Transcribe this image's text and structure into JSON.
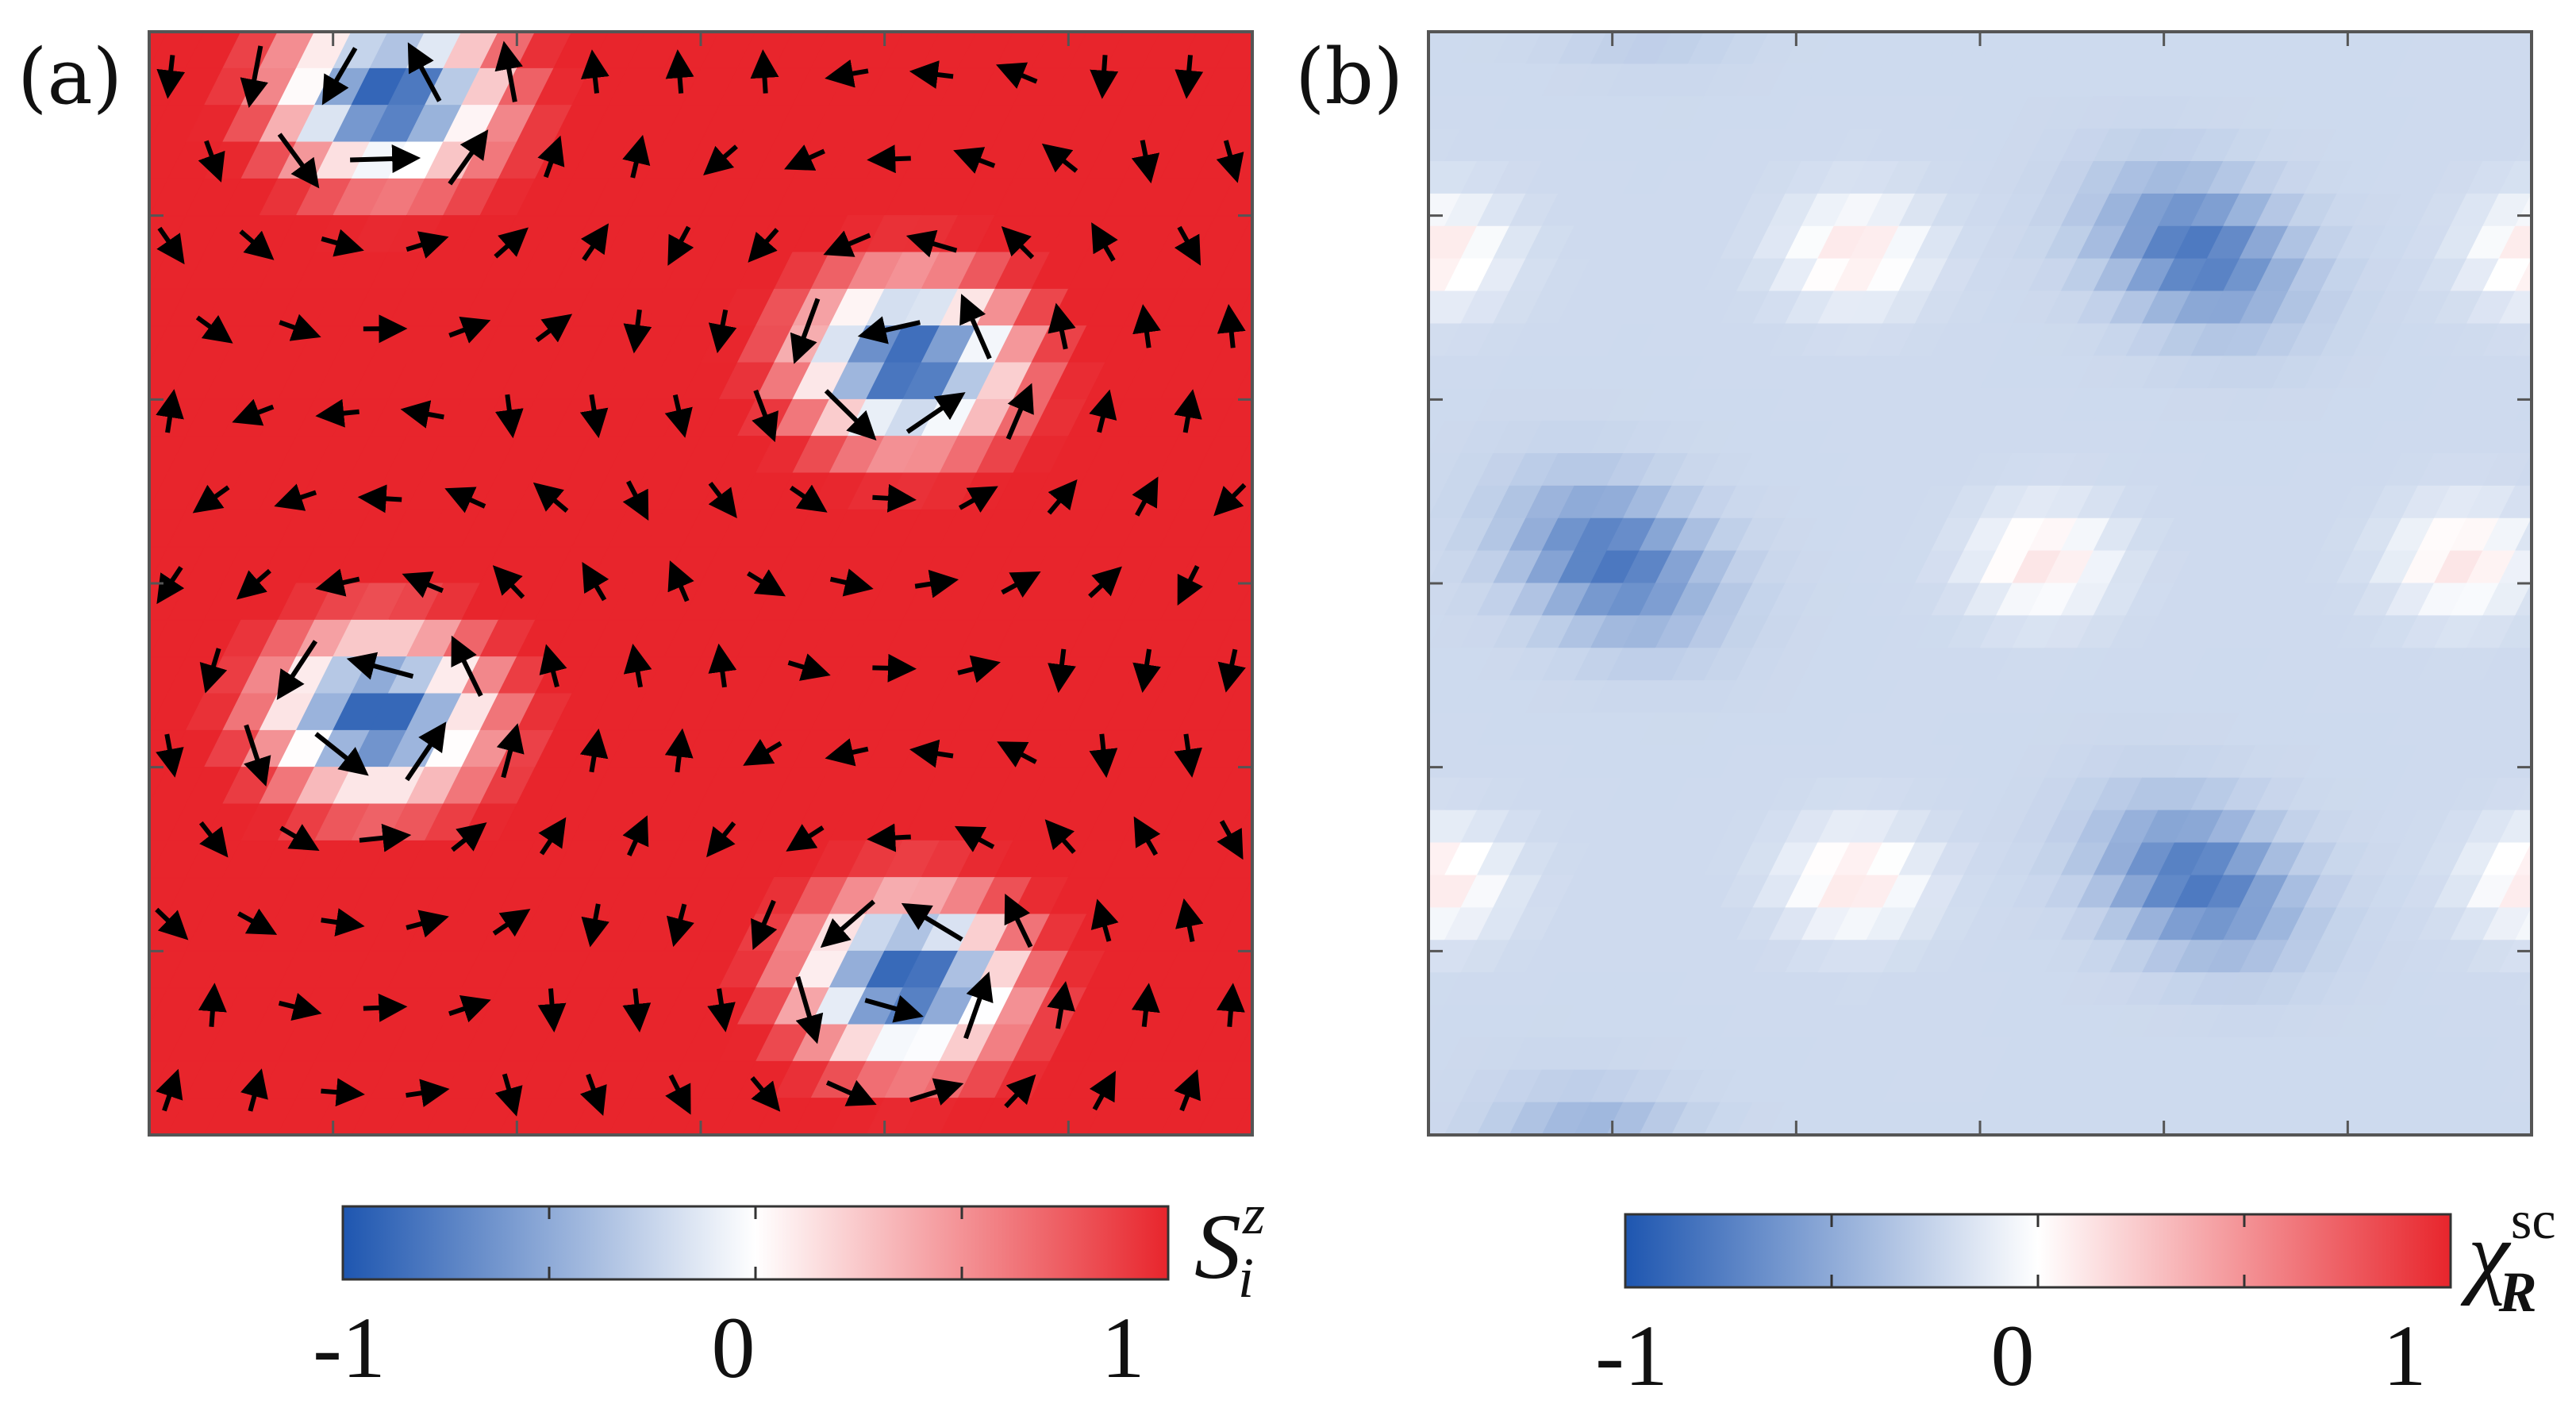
{
  "chart_data": [
    {
      "panel": "(a)",
      "type": "heatmap",
      "title": "",
      "xlabel": "",
      "ylabel": "",
      "field": "spin z-component with in-plane spin vectors (arrows)",
      "skyrmion_core_value": -1,
      "background_value": 1,
      "skyrmion_count_visible": 4,
      "grid": "off",
      "colorbar": {
        "label_symbol": "S",
        "label_sub": "i",
        "label_sup": "z",
        "range": [
          -1,
          1
        ],
        "tick_labels": [
          "-1",
          "0",
          "1"
        ],
        "colors": {
          "low": "#1e56b0",
          "mid": "#ffffff",
          "high": "#e8252c"
        }
      }
    },
    {
      "panel": "(b)",
      "type": "heatmap",
      "title": "",
      "xlabel": "",
      "ylabel": "",
      "field": "scalar spin chirality",
      "min_value_estimate": -0.8,
      "max_value_estimate": 0.12,
      "grid": "off",
      "colorbar": {
        "label_symbol": "χ",
        "label_sub": "R",
        "label_sup": "sc",
        "range": [
          -1,
          1
        ],
        "tick_labels": [
          "-1",
          "0",
          "1"
        ],
        "colors": {
          "low": "#1e56b0",
          "mid": "#ffffff",
          "high": "#e8252c"
        }
      }
    }
  ]
}
